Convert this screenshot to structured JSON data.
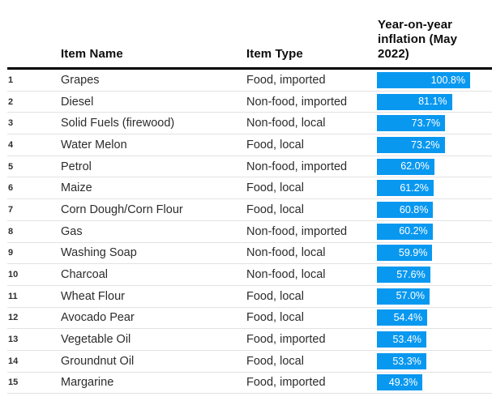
{
  "styles": {
    "bar_color": "#0998f0",
    "header_rule_color": "#000000",
    "row_separator_color": "#e2e2e2",
    "bar_label_color": "#ffffff"
  },
  "chart_data": {
    "type": "bar",
    "orientation": "horizontal",
    "title": "",
    "value_suffix": "%",
    "max_value": 100.8,
    "legend": "none",
    "columns": [
      "",
      "Item Name",
      "Item Type",
      "Year-on-year inflation (May 2022)"
    ],
    "rows": [
      {
        "rank": "1",
        "item_name": "Grapes",
        "item_type": "Food, imported",
        "value": 100.8,
        "value_label": "100.8%"
      },
      {
        "rank": "2",
        "item_name": "Diesel",
        "item_type": "Non-food, imported",
        "value": 81.1,
        "value_label": "81.1%"
      },
      {
        "rank": "3",
        "item_name": "Solid Fuels (firewood)",
        "item_type": "Non-food, local",
        "value": 73.7,
        "value_label": "73.7%"
      },
      {
        "rank": "4",
        "item_name": "Water Melon",
        "item_type": "Food, local",
        "value": 73.2,
        "value_label": "73.2%"
      },
      {
        "rank": "5",
        "item_name": "Petrol",
        "item_type": "Non-food, imported",
        "value": 62.0,
        "value_label": "62.0%"
      },
      {
        "rank": "6",
        "item_name": "Maize",
        "item_type": "Food, local",
        "value": 61.2,
        "value_label": "61.2%"
      },
      {
        "rank": "7",
        "item_name": "Corn Dough/Corn Flour",
        "item_type": "Food, local",
        "value": 60.8,
        "value_label": "60.8%"
      },
      {
        "rank": "8",
        "item_name": "Gas",
        "item_type": "Non-food, imported",
        "value": 60.2,
        "value_label": "60.2%"
      },
      {
        "rank": "9",
        "item_name": "Washing Soap",
        "item_type": "Non-food, local",
        "value": 59.9,
        "value_label": "59.9%"
      },
      {
        "rank": "10",
        "item_name": "Charcoal",
        "item_type": "Non-food, local",
        "value": 57.6,
        "value_label": "57.6%"
      },
      {
        "rank": "11",
        "item_name": "Wheat Flour",
        "item_type": "Food, local",
        "value": 57.0,
        "value_label": "57.0%"
      },
      {
        "rank": "12",
        "item_name": "Avocado Pear",
        "item_type": "Food, local",
        "value": 54.4,
        "value_label": "54.4%"
      },
      {
        "rank": "13",
        "item_name": "Vegetable Oil",
        "item_type": "Food, imported",
        "value": 53.4,
        "value_label": "53.4%"
      },
      {
        "rank": "14",
        "item_name": "Groundnut Oil",
        "item_type": "Food, local",
        "value": 53.3,
        "value_label": "53.3%"
      },
      {
        "rank": "15",
        "item_name": "Margarine",
        "item_type": "Food, imported",
        "value": 49.3,
        "value_label": "49.3%"
      }
    ]
  }
}
